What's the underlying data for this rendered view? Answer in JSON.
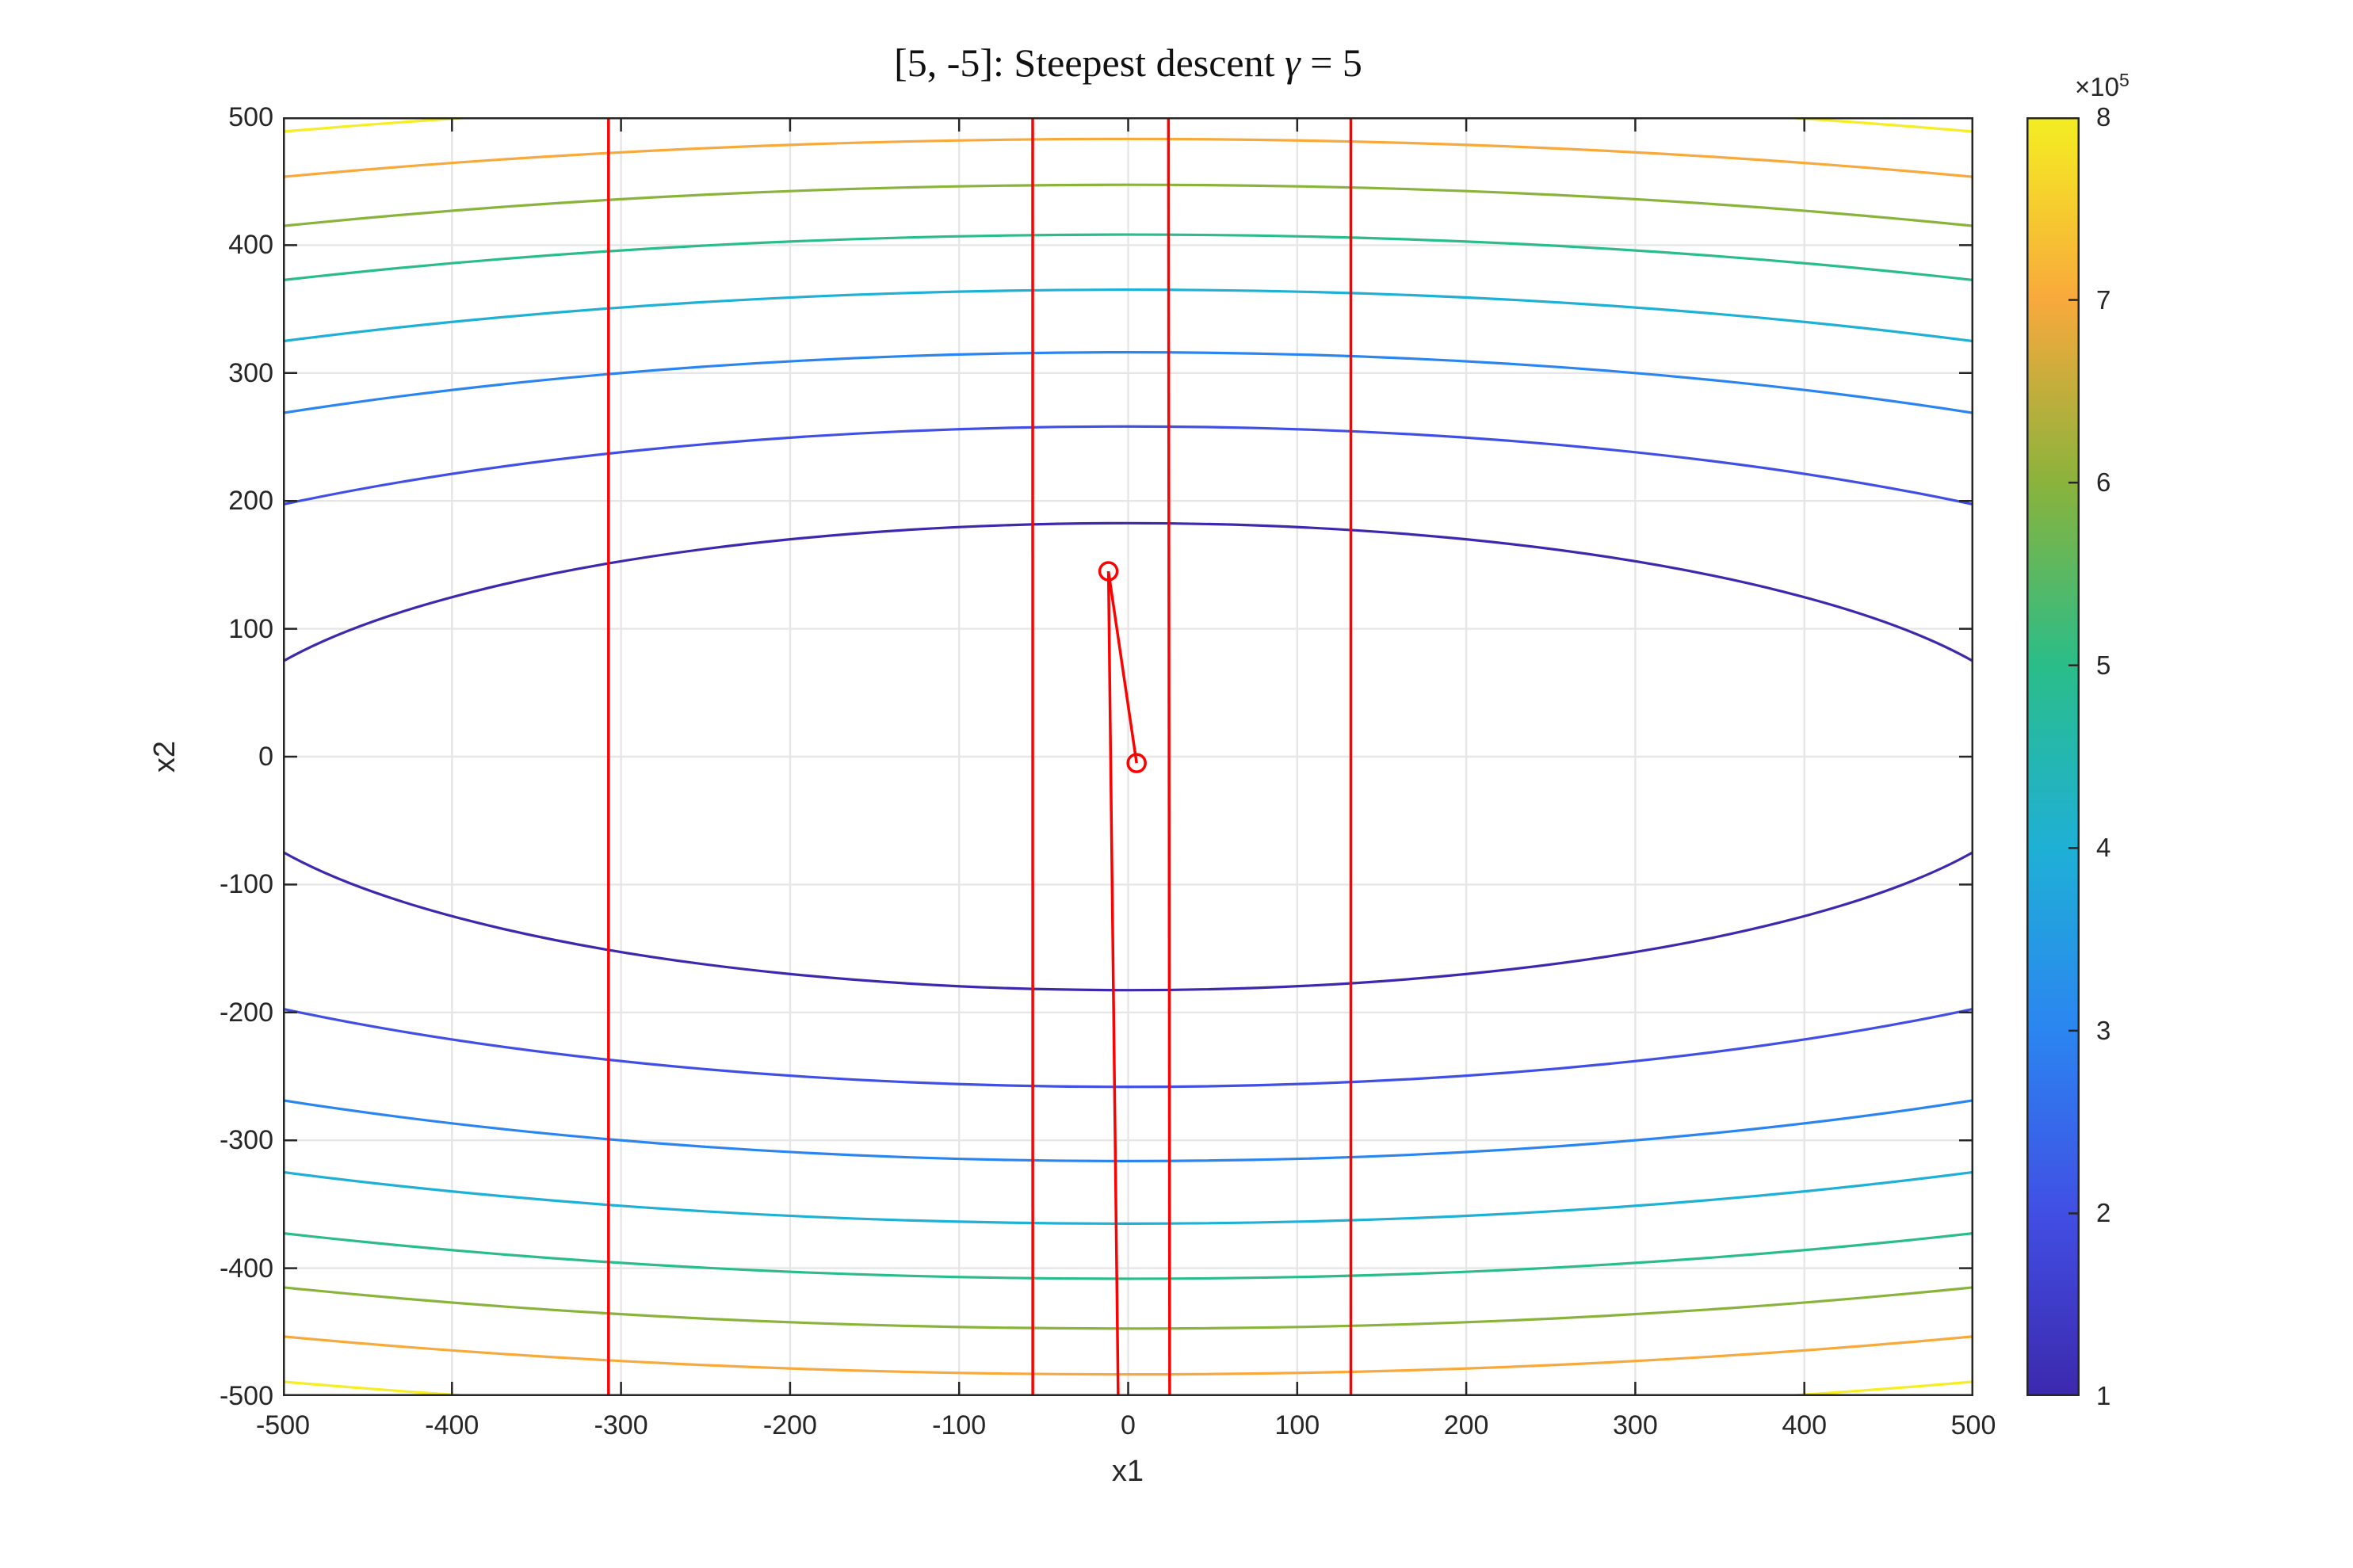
{
  "title": {
    "prefix": "[5, -5]: Steepest descent ",
    "gamma": "γ",
    "suffix": " = 5"
  },
  "axes": {
    "xlabel": "x1",
    "ylabel": "x2",
    "xlim": [
      -500,
      500
    ],
    "ylim": [
      -500,
      500
    ],
    "x_ticks": [
      -500,
      -400,
      -300,
      -200,
      -100,
      0,
      100,
      200,
      300,
      400,
      500
    ],
    "y_ticks": [
      -500,
      -400,
      -300,
      -200,
      -100,
      0,
      100,
      200,
      300,
      400,
      500
    ],
    "grid": true,
    "axis_color": "#262626",
    "grid_color": "#e6e6e6"
  },
  "chart_data": {
    "type": "contour",
    "title": "[5, -5]: Steepest descent γ = 5",
    "xlabel": "x1",
    "ylabel": "x2",
    "xlim": [
      -500,
      500
    ],
    "ylim": [
      -500,
      500
    ],
    "grid": true,
    "contour_levels": [
      {
        "value": 100000,
        "semi_axis_x1": 547.72,
        "semi_axis_x2": 182.57,
        "color": "#3c29ad"
      },
      {
        "value": 200000,
        "semi_axis_x1": 774.6,
        "semi_axis_x2": 258.2,
        "color": "#414fe4"
      },
      {
        "value": 300000,
        "semi_axis_x1": 948.68,
        "semi_axis_x2": 316.23,
        "color": "#2b85f0"
      },
      {
        "value": 400000,
        "semi_axis_x1": 1095.45,
        "semi_axis_x2": 365.15,
        "color": "#1fb0d6"
      },
      {
        "value": 500000,
        "semi_axis_x1": 1224.74,
        "semi_axis_x2": 408.25,
        "color": "#2abd89"
      },
      {
        "value": 600000,
        "semi_axis_x1": 1341.64,
        "semi_axis_x2": 447.21,
        "color": "#8ab33c"
      },
      {
        "value": 700000,
        "semi_axis_x1": 1449.14,
        "semi_axis_x2": 483.05,
        "color": "#f8a93c"
      },
      {
        "value": 800000,
        "semi_axis_x1": 1549.19,
        "semi_axis_x2": 516.4,
        "color": "#f4ee22"
      }
    ],
    "descent_path": {
      "color": "#ff0000",
      "marker": "circle",
      "start_point": [
        5,
        -5
      ],
      "points": [
        [
          5,
          -5
        ],
        [
          -11.6667,
          145
        ],
        [
          27.2222,
          -4205
        ],
        [
          -63.5185,
          121945
        ],
        [
          148.2099,
          -3536405
        ],
        [
          -345.823,
          102555745
        ],
        [
          806.9204,
          -2974116605
        ]
      ]
    },
    "colorbar": {
      "exponent_base": "×10",
      "exponent_power": "5",
      "tick_values": [
        1,
        2,
        3,
        4,
        5,
        6,
        7,
        8
      ],
      "stop_colors": [
        "#3c29ad",
        "#414fe4",
        "#2b85f0",
        "#1fb0d6",
        "#2abd89",
        "#8ab33c",
        "#f8a93c",
        "#f4ee22"
      ]
    }
  }
}
